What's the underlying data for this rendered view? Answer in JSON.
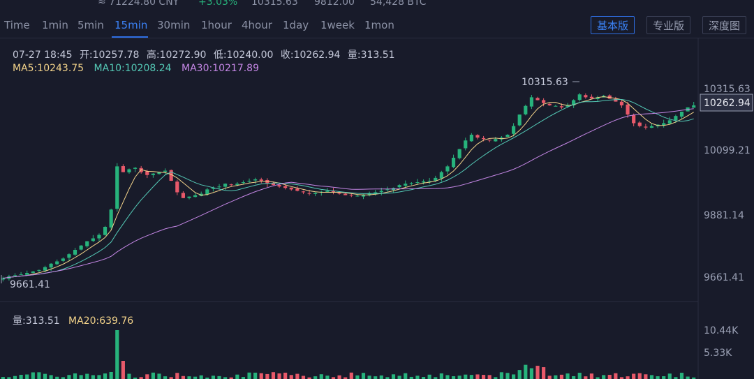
{
  "topbar": {
    "cny": "≈ 71224.80 CNY",
    "change": "+3.03%",
    "high": "10315.63",
    "low": "9812.00",
    "volume": "54,428 BTC"
  },
  "timeframes": [
    "Time",
    "1min",
    "5min",
    "15min",
    "30min",
    "1hour",
    "4hour",
    "1day",
    "1week",
    "1mon"
  ],
  "active_timeframe": "15min",
  "view_buttons": [
    "基本版",
    "专业版",
    "深度图"
  ],
  "active_view": "基本版",
  "ohlc": {
    "time": "07-27 18:45",
    "open": "开:10257.78",
    "high": "高:10272.90",
    "low": "低:10240.00",
    "close": "收:10262.94",
    "vol": "量:313.51"
  },
  "ma": {
    "ma5": "MA5:10243.75",
    "ma10": "MA10:10208.24",
    "ma30": "MA30:10217.89"
  },
  "price_axis": {
    "labels": [
      "10315.63",
      "10099.21",
      "9881.14",
      "9661.41"
    ],
    "current": "10262.94"
  },
  "annotations": {
    "high": "10315.63",
    "low": "9661.41"
  },
  "volume_panel": {
    "vol_label": "量:313.51",
    "ma20_label": "MA20:639.76",
    "axis": [
      "10.44K",
      "5.33K"
    ]
  },
  "colors": {
    "up": "#27b37c",
    "down": "#e8596a",
    "accent": "#2f6fe4",
    "ma5": "#f3d38a",
    "ma10": "#54c9b6",
    "ma30": "#c587e6"
  },
  "chart_data": {
    "type": "candlestick",
    "y_range": [
      9600,
      10400
    ],
    "closes": [
      9661,
      9668,
      9672,
      9675,
      9680,
      9685,
      9690,
      9700,
      9712,
      9720,
      9730,
      9745,
      9760,
      9775,
      9790,
      9800,
      9812,
      9840,
      9900,
      10050,
      10030,
      10040,
      10045,
      10030,
      10020,
      10025,
      10030,
      10035,
      10000,
      9960,
      9940,
      9945,
      9950,
      9955,
      9970,
      9975,
      9980,
      9990,
      9985,
      9990,
      9995,
      10000,
      10005,
      10000,
      9990,
      9985,
      9980,
      9975,
      9970,
      9965,
      9960,
      9955,
      9958,
      9962,
      9965,
      9960,
      9955,
      9950,
      9950,
      9948,
      9952,
      9956,
      9960,
      9965,
      9970,
      9975,
      9985,
      9990,
      9992,
      9995,
      9998,
      10000,
      10010,
      10030,
      10050,
      10080,
      10110,
      10140,
      10160,
      10150,
      10145,
      10140,
      10145,
      10150,
      10160,
      10190,
      10230,
      10260,
      10290,
      10280,
      10270,
      10262,
      10260,
      10255,
      10262,
      10280,
      10300,
      10290,
      10286,
      10290,
      10295,
      10285,
      10275,
      10262,
      10230,
      10200,
      10190,
      10185,
      10190,
      10195,
      10200,
      10210,
      10225,
      10240,
      10255,
      10262
    ],
    "high_value": 10315.63,
    "low_value": 9661.41,
    "volume_ylim": [
      0,
      10440
    ]
  }
}
